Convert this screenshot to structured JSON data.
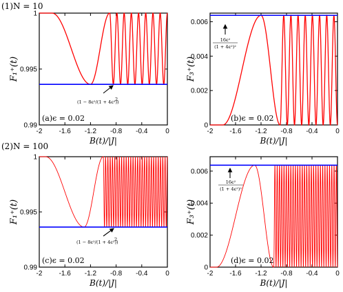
{
  "section_labels": [
    "(1)N = 10",
    "(2)N = 100"
  ],
  "colors": {
    "curve": "#ff0000",
    "bound": "#0000ff",
    "frame": "#000000"
  },
  "chart_data": [
    {
      "id": "a",
      "type": "line",
      "panel_label": "(a)ϵ = 0.02",
      "N": 10,
      "epsilon": 0.02,
      "xlabel": "B(t)/|J|",
      "ylabel": "F₁⁺(t)",
      "xlim": [
        -2,
        0
      ],
      "ylim": [
        0.99,
        1
      ],
      "xticks": [
        "-2",
        "-1.6",
        "-1.2",
        "-0.8",
        "-0.4",
        "0"
      ],
      "yticks": [
        "0.99",
        "0.995",
        "1"
      ],
      "series": [
        {
          "kind": "curve",
          "min_at_x": -1.2,
          "min_y": 0.99363,
          "equals_bound_from_x": -0.9,
          "plateau_until_x": -1.8,
          "oscillations": 8
        },
        {
          "kind": "hline",
          "y": 0.99363
        }
      ],
      "annotation": {
        "lines": [
          "(1 − 8ϵ²/(1 + 4ϵ²))",
          "2"
        ]
      }
    },
    {
      "id": "b",
      "type": "line",
      "panel_label": "(b)ϵ = 0.02",
      "N": 10,
      "epsilon": 0.02,
      "xlabel": "B(t)/|J|",
      "ylabel": "F₃⁺(t)",
      "xlim": [
        -2,
        0
      ],
      "ylim": [
        0,
        0.0065
      ],
      "xticks": [
        "-2",
        "-1.6",
        "-1.2",
        "-0.8",
        "-0.4",
        "0"
      ],
      "yticks": [
        "0",
        "0.002",
        "0.004",
        "0.006"
      ],
      "series": [
        {
          "kind": "curve",
          "max_at_x": -1.2,
          "max_y": 0.00637,
          "equals_bound_from_x": -0.9,
          "rise_from_x": -1.8,
          "oscillations": 8
        },
        {
          "kind": "hline",
          "y": 0.00637
        }
      ],
      "annotation": {
        "lines": [
          "16ϵ²",
          "(1 + 4ϵ²)²"
        ]
      }
    },
    {
      "id": "c",
      "type": "line",
      "panel_label": "(c)ϵ = 0.02",
      "N": 100,
      "epsilon": 0.02,
      "xlabel": "B(t)/|J|",
      "ylabel": "F₁⁺(t)",
      "xlim": [
        -2,
        0
      ],
      "ylim": [
        0.99,
        1
      ],
      "xticks": [
        "-2",
        "-1.6",
        "-1.2",
        "-0.8",
        "-0.4",
        "0"
      ],
      "yticks": [
        "0.99",
        "0.995",
        "1"
      ],
      "series": [
        {
          "kind": "curve",
          "min_at_x": -1.3,
          "min_y": 0.99363,
          "equals_bound_from_x": -1.0,
          "plateau_until_x": -1.9,
          "oscillations": 28
        },
        {
          "kind": "hline",
          "y": 0.99363
        }
      ],
      "annotation": {
        "lines": [
          "(1 − 8ϵ²/(1 + 4ϵ²))",
          "2"
        ]
      }
    },
    {
      "id": "d",
      "type": "line",
      "panel_label": "(d)ϵ = 0.02",
      "N": 100,
      "epsilon": 0.02,
      "xlabel": "B(t)/|J|",
      "ylabel": "F₃⁺(t)",
      "xlim": [
        -2,
        0
      ],
      "ylim": [
        0,
        0.0069
      ],
      "xticks": [
        "-2",
        "-1.6",
        "-1.2",
        "-0.8",
        "-0.4",
        "0"
      ],
      "yticks": [
        "0",
        "0.002",
        "0.004",
        "0.006"
      ],
      "series": [
        {
          "kind": "curve",
          "max_at_x": -1.3,
          "max_y": 0.00637,
          "equals_bound_from_x": -1.0,
          "rise_from_x": -1.9,
          "oscillations": 28
        },
        {
          "kind": "hline",
          "y": 0.00637
        }
      ],
      "annotation": {
        "lines": [
          "16ϵ²",
          "(1 + 4ϵ²)²"
        ]
      }
    }
  ]
}
